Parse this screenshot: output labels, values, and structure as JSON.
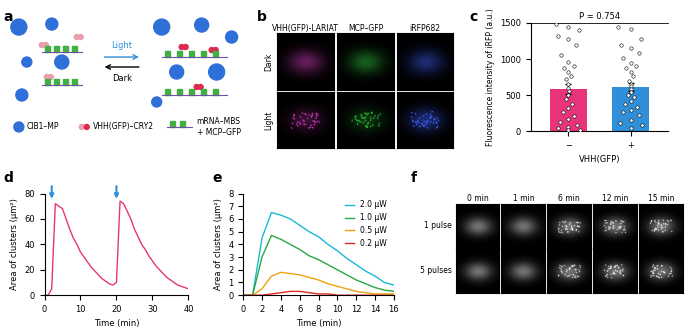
{
  "panels": {
    "a": {
      "label": "a",
      "type": "diagram",
      "arrow_top": "Light",
      "arrow_bottom": "Dark",
      "legend_items": [
        "CIB1–MP",
        "VHH(GFP)–CRY2",
        "mRNA–MBS\n+ MCP–GFP"
      ]
    },
    "b": {
      "label": "b",
      "type": "image_grid",
      "columns": [
        "VHH(GFP)-LARIAT",
        "MCP–GFP",
        "iRFP682"
      ],
      "column_colors": [
        "#e040c8",
        "#30d040",
        "#4060ff"
      ],
      "rows": [
        "Dark",
        "Light"
      ]
    },
    "f": {
      "label": "f",
      "type": "image_grid",
      "columns": [
        "0 min",
        "1 min",
        "6 min",
        "12 min",
        "15 min"
      ],
      "column_colors": [
        "#ffffff",
        "#ffffff",
        "#ffffff",
        "#ffffff",
        "#ffffff"
      ],
      "rows": [
        "1 pulse",
        "5 pulses"
      ]
    }
  },
  "chart_data": [
    {
      "panel": "c",
      "type": "bar",
      "categories": [
        "−",
        "+"
      ],
      "values": [
        590,
        615
      ],
      "errors": [
        70,
        55
      ],
      "colors": [
        "#e8347a",
        "#2f8fd8"
      ],
      "xlabel": "VHH(GFP)",
      "ylabel": "Fluorescence intensity of iRFP (a.u.)",
      "ylim": [
        0,
        1500
      ],
      "yticks": [
        0,
        500,
        1000,
        1500
      ],
      "annotation": "P = 0.754",
      "points": [
        [
          1480,
          1450,
          1400,
          1320,
          1280,
          1200,
          1050,
          960,
          900,
          870,
          820,
          760,
          720,
          650,
          600,
          560,
          500,
          450,
          380,
          320,
          260,
          210,
          170,
          130,
          90,
          60,
          40,
          20,
          10
        ],
        [
          1450,
          1410,
          1280,
          1200,
          1150,
          1080,
          1020,
          950,
          900,
          880,
          820,
          760,
          700,
          660,
          620,
          580,
          540,
          500,
          470,
          420,
          380,
          340,
          300,
          260,
          220,
          160,
          120,
          80,
          50
        ]
      ]
    },
    {
      "panel": "d",
      "type": "line",
      "color": "#e8347a",
      "xlabel": "Time (min)",
      "ylabel": "Area of clusters (µm²)",
      "x": [
        0,
        1,
        2,
        3,
        4,
        5,
        6,
        7,
        8,
        9,
        10,
        11,
        12,
        13,
        14,
        15,
        16,
        17,
        18,
        19,
        20,
        21,
        22,
        23,
        24,
        25,
        26,
        27,
        28,
        29,
        30,
        31,
        32,
        33,
        34,
        35,
        36,
        37,
        38,
        39,
        40
      ],
      "values": [
        0,
        0,
        5,
        72,
        70,
        68,
        60,
        52,
        45,
        40,
        34,
        30,
        26,
        22,
        19,
        16,
        13,
        11,
        9,
        8,
        10,
        74,
        72,
        66,
        60,
        52,
        46,
        40,
        36,
        31,
        27,
        23,
        20,
        17,
        14,
        12,
        10,
        8,
        7,
        6,
        5
      ],
      "light_pulses": [
        2,
        20
      ],
      "pulse_color": "#2f8fd8",
      "xlim": [
        0,
        40
      ],
      "xticks": [
        0,
        10,
        20,
        30,
        40
      ],
      "ylim": [
        0,
        80
      ],
      "yticks": [
        0,
        20,
        40,
        60,
        80
      ]
    },
    {
      "panel": "e",
      "type": "line",
      "xlabel": "Time (min)",
      "ylabel": "Area of clusters (µm²)",
      "x": [
        0,
        1,
        2,
        3,
        4,
        5,
        6,
        7,
        8,
        9,
        10,
        11,
        12,
        13,
        14,
        15,
        16
      ],
      "series": [
        {
          "name": "2.0 µW",
          "color": "#19b8d6",
          "values": [
            0,
            0,
            4.5,
            6.5,
            6.3,
            6.0,
            5.5,
            5.0,
            4.6,
            4.0,
            3.5,
            2.9,
            2.4,
            1.9,
            1.5,
            1.0,
            0.8
          ]
        },
        {
          "name": "1.0 µW",
          "color": "#27a844",
          "values": [
            0,
            0,
            3.0,
            4.7,
            4.4,
            4.0,
            3.6,
            3.1,
            2.8,
            2.4,
            2.0,
            1.6,
            1.2,
            0.9,
            0.6,
            0.4,
            0.3
          ]
        },
        {
          "name": "0.5 µW",
          "color": "#f0a30a",
          "values": [
            0,
            0,
            0.5,
            1.5,
            1.8,
            1.7,
            1.6,
            1.4,
            1.2,
            0.9,
            0.7,
            0.5,
            0.3,
            0.2,
            0.1,
            0.1,
            0.1
          ]
        },
        {
          "name": "0.2 µW",
          "color": "#e0291f",
          "values": [
            0,
            0,
            0,
            0.1,
            0.2,
            0.3,
            0.3,
            0.2,
            0.1,
            0.1,
            0,
            0,
            0,
            0,
            0,
            0,
            0
          ]
        }
      ],
      "legend": "upper right",
      "xlim": [
        0,
        16
      ],
      "xticks": [
        0,
        2,
        4,
        6,
        8,
        10,
        12,
        14,
        16
      ],
      "ylim": [
        0,
        8
      ],
      "yticks": [
        0,
        1,
        2,
        3,
        4,
        5,
        6,
        7,
        8
      ]
    }
  ]
}
